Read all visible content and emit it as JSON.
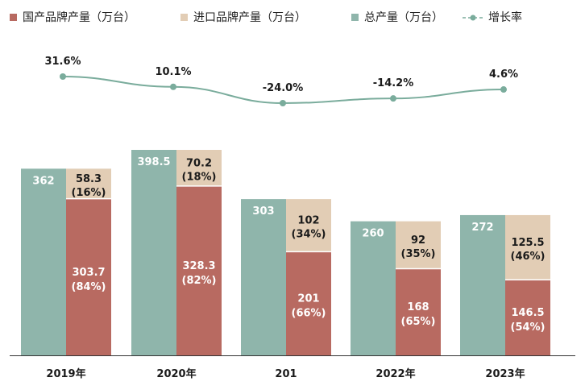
{
  "colors": {
    "domestic": "#b86a61",
    "imported": "#e2cdb5",
    "total": "#8fb5ab",
    "growth": "#7aac9c"
  },
  "chart_data": {
    "type": "bar",
    "categories": [
      "2019年",
      "2020年",
      "201",
      "2022年",
      "2023年"
    ],
    "series": [
      {
        "name": "国产品牌产量（万台）",
        "values": [
          303.7,
          328.3,
          201,
          168,
          146.5
        ],
        "labels": [
          [
            "303.7",
            "(84%)"
          ],
          [
            "328.3",
            "(82%)"
          ],
          [
            "201",
            "(66%)"
          ],
          [
            "168",
            "(65%)"
          ],
          [
            "146.5",
            "(54%)"
          ]
        ]
      },
      {
        "name": "进口品牌产量（万台）",
        "values": [
          58.3,
          70.2,
          102,
          92,
          125.5
        ],
        "labels": [
          [
            "58.3",
            "(16%)"
          ],
          [
            "70.2",
            "(18%)"
          ],
          [
            "102",
            "(34%)"
          ],
          [
            "92",
            "(35%)"
          ],
          [
            "125.5",
            "(46%)"
          ]
        ]
      },
      {
        "name": "总产量（万台）",
        "values": [
          362,
          398.5,
          303,
          260,
          272
        ],
        "labels": [
          "362",
          "398.5",
          "303",
          "260",
          "272"
        ]
      },
      {
        "name": "增长率",
        "type": "line",
        "values": [
          31.6,
          10.1,
          -24.0,
          -14.2,
          4.6
        ],
        "labels": [
          "31.6%",
          "10.1%",
          "-24.0%",
          "-14.2%",
          "4.6%"
        ]
      }
    ],
    "stacked": [
      "国产品牌产量（万台）",
      "进口品牌产量（万台）"
    ],
    "ylim": [
      0,
      400
    ],
    "legend_position": "top",
    "grid": false
  }
}
